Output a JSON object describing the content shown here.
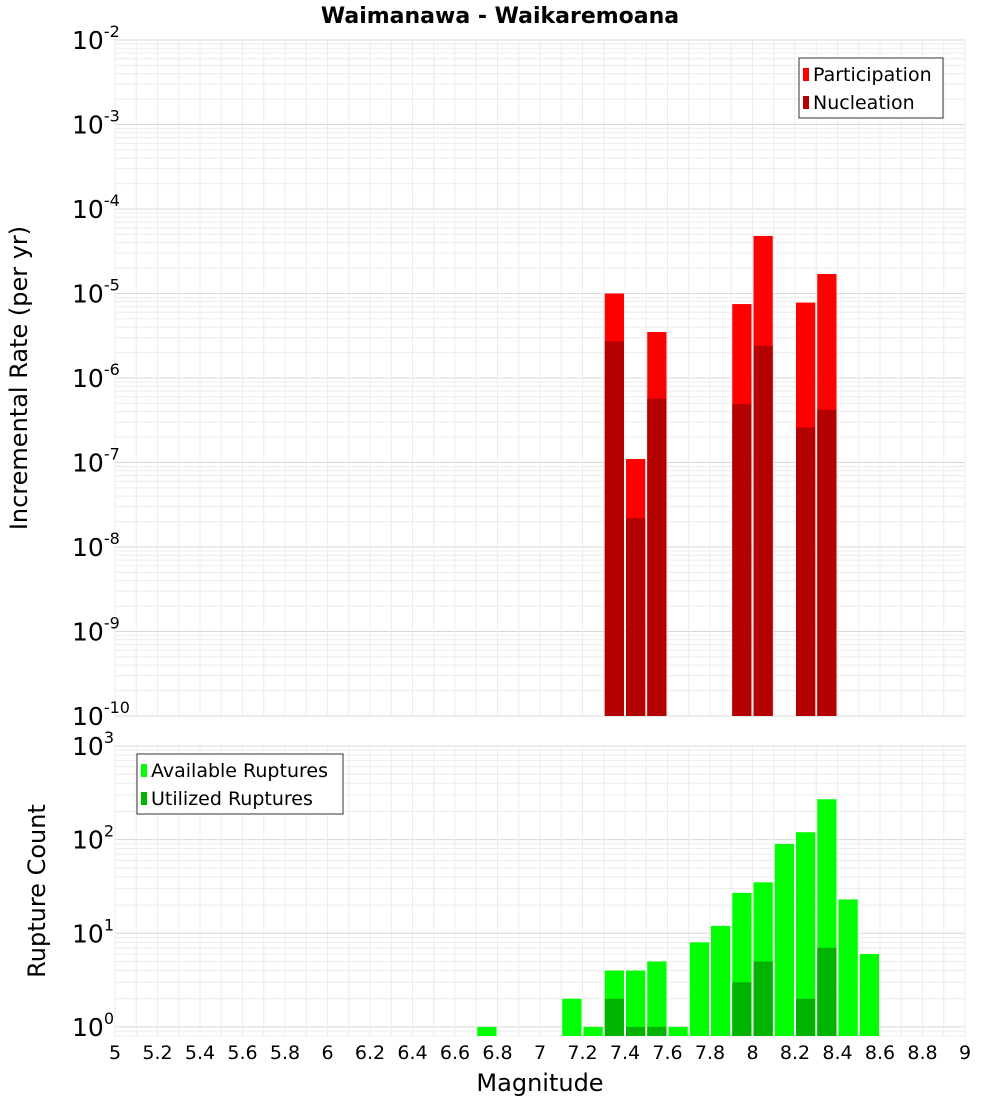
{
  "chart_data": {
    "title": "Waimanawa - Waikaremoana",
    "xlabel": "Magnitude",
    "x_ticks": [
      "5",
      "5.2",
      "5.4",
      "5.6",
      "5.8",
      "6",
      "6.2",
      "6.4",
      "6.6",
      "6.8",
      "7",
      "7.2",
      "7.4",
      "7.6",
      "7.8",
      "8",
      "8.2",
      "8.4",
      "8.6",
      "8.8",
      "9"
    ],
    "xlim": [
      5,
      9
    ],
    "panels": [
      {
        "type": "bar",
        "ylabel": "Incremental Rate (per yr)",
        "yscale": "log",
        "ylim": [
          1e-10,
          0.01
        ],
        "y_tick_exponents": [
          -2,
          -3,
          -4,
          -5,
          -6,
          -7,
          -8,
          -9,
          -10
        ],
        "grid": true,
        "legend_position": "top-right",
        "series": [
          {
            "name": "Participation",
            "color": "#ff0000",
            "points": [
              [
                7.35,
                1e-05
              ],
              [
                7.45,
                1.1e-07
              ],
              [
                7.55,
                3.5e-06
              ],
              [
                7.95,
                7.5e-06
              ],
              [
                8.05,
                4.8e-05
              ],
              [
                8.25,
                7.8e-06
              ],
              [
                8.35,
                1.7e-05
              ]
            ]
          },
          {
            "name": "Nucleation",
            "color": "#b30000",
            "points": [
              [
                7.35,
                2.7e-06
              ],
              [
                7.45,
                2.2e-08
              ],
              [
                7.55,
                5.7e-07
              ],
              [
                7.95,
                4.9e-07
              ],
              [
                8.05,
                2.4e-06
              ],
              [
                8.25,
                2.6e-07
              ],
              [
                8.35,
                4.2e-07
              ]
            ]
          }
        ]
      },
      {
        "type": "bar",
        "ylabel": "Rupture Count",
        "yscale": "log",
        "ylim": [
          0.8,
          1000
        ],
        "y_tick_exponents": [
          3,
          2,
          1,
          0
        ],
        "grid": true,
        "legend_position": "top-left",
        "series": [
          {
            "name": "Available Ruptures",
            "color": "#00ff00",
            "points": [
              [
                6.75,
                1
              ],
              [
                7.15,
                2
              ],
              [
                7.25,
                1
              ],
              [
                7.35,
                4
              ],
              [
                7.45,
                4
              ],
              [
                7.55,
                5
              ],
              [
                7.65,
                1
              ],
              [
                7.75,
                8
              ],
              [
                7.85,
                12
              ],
              [
                7.95,
                27
              ],
              [
                8.05,
                35
              ],
              [
                8.15,
                90
              ],
              [
                8.25,
                120
              ],
              [
                8.35,
                270
              ],
              [
                8.45,
                23
              ],
              [
                8.55,
                6
              ]
            ]
          },
          {
            "name": "Utilized Ruptures",
            "color": "#00b300",
            "points": [
              [
                7.35,
                2
              ],
              [
                7.45,
                1
              ],
              [
                7.55,
                1
              ],
              [
                7.95,
                3
              ],
              [
                8.05,
                5
              ],
              [
                8.25,
                2
              ],
              [
                8.35,
                7
              ]
            ]
          }
        ]
      }
    ]
  }
}
